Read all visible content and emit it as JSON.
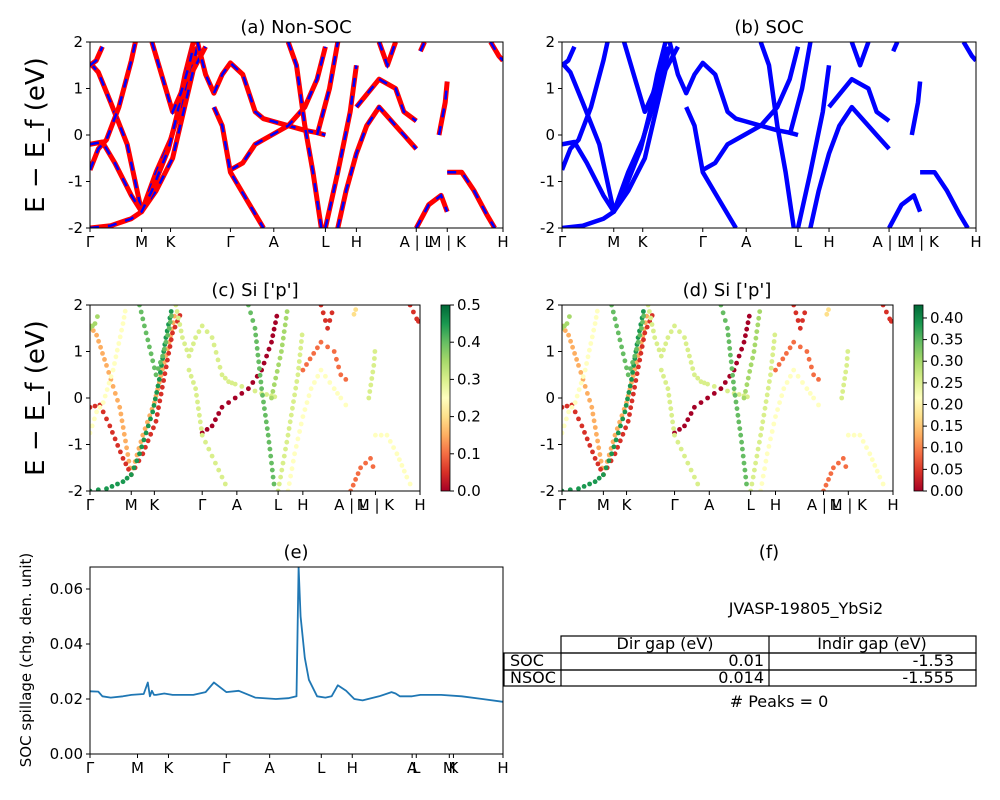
{
  "panels": {
    "a_title": "(a) Non-SOC",
    "b_title": "(b) SOC",
    "c_title": "(c)  Si ['p']",
    "d_title": "(d) Si ['p']",
    "e_title": "(e)",
    "f_title": "(f)",
    "band_ylabel": "E − E_f (eV)",
    "spill_ylabel": "SOC spillage (chg. den. unit)"
  },
  "kpath_labels": [
    "Γ",
    "M",
    "K",
    "Γ",
    "A",
    "L",
    "H",
    "A | L",
    "M | K",
    "H"
  ],
  "kpath_positions": [
    0,
    0.125,
    0.195,
    0.34,
    0.445,
    0.57,
    0.645,
    0.79,
    0.865,
    1.0
  ],
  "kpath_labels_cd": [
    "Γ",
    "M",
    "K",
    "Γ",
    "A",
    "L",
    "H",
    "A | L",
    "M | K",
    "H"
  ],
  "kpath_labels_e": [
    "Γ",
    "M",
    "K",
    "Γ",
    "A",
    "L",
    "H",
    "A",
    "L",
    "M",
    "K",
    "H"
  ],
  "kpath_positions_e": [
    0,
    0.115,
    0.19,
    0.33,
    0.435,
    0.56,
    0.635,
    0.78,
    0.79,
    0.87,
    0.88,
    1.0
  ],
  "colors": {
    "nonsoc_red": "#ff0000",
    "nonsoc_blue": "#0000ff",
    "soc_blue": "#0000ff",
    "spill_line": "#1f77b4"
  },
  "chart_data": [
    {
      "type": "line",
      "title": "(a) Non-SOC",
      "ylabel": "E − E_f (eV)",
      "ylim": [
        -2,
        2
      ],
      "xticklabels": [
        "Γ",
        "M",
        "K",
        "Γ",
        "A",
        "L",
        "H",
        "A | L",
        "M | K",
        "H"
      ],
      "yticks": [
        -2,
        -1,
        0,
        1,
        2
      ],
      "style": "red solid with blue dashes overlay"
    },
    {
      "type": "line",
      "title": "(b) SOC",
      "ylim": [
        -2,
        2
      ],
      "xticklabels": [
        "Γ",
        "M",
        "K",
        "Γ",
        "A",
        "L",
        "H",
        "A | L",
        "M | K",
        "H"
      ],
      "yticks": [
        -2,
        -1,
        0,
        1,
        2
      ],
      "style": "blue solid"
    },
    {
      "type": "scatter",
      "title": "(c)  Si ['p']",
      "ylabel": "E − E_f (eV)",
      "ylim": [
        -2,
        2
      ],
      "colorbar": {
        "min": 0.0,
        "max": 0.5,
        "ticks": [
          "0.0",
          "0.1",
          "0.2",
          "0.3",
          "0.4",
          "0.5"
        ],
        "cmap": "RdYlGn"
      }
    },
    {
      "type": "scatter",
      "title": "(d) Si ['p']",
      "ylim": [
        -2,
        2
      ],
      "colorbar": {
        "min": 0.0,
        "max": 0.43,
        "ticks": [
          "0.00",
          "0.05",
          "0.10",
          "0.15",
          "0.20",
          "0.25",
          "0.30",
          "0.35",
          "0.40"
        ],
        "cmap": "RdYlGn"
      }
    },
    {
      "type": "line",
      "title": "(e)",
      "ylabel": "SOC spillage (chg. den. unit)",
      "ylim": [
        0,
        0.068
      ],
      "yticks": [
        "0.00",
        "0.02",
        "0.04",
        "0.06"
      ],
      "x": [
        0,
        0.02,
        0.03,
        0.05,
        0.08,
        0.1,
        0.13,
        0.14,
        0.145,
        0.15,
        0.155,
        0.16,
        0.18,
        0.2,
        0.25,
        0.28,
        0.3,
        0.33,
        0.36,
        0.4,
        0.45,
        0.48,
        0.5,
        0.505,
        0.51,
        0.52,
        0.53,
        0.55,
        0.57,
        0.585,
        0.6,
        0.62,
        0.64,
        0.66,
        0.7,
        0.73,
        0.74,
        0.75,
        0.78,
        0.8,
        0.85,
        0.9,
        0.95,
        1.0
      ],
      "y": [
        0.0228,
        0.0227,
        0.021,
        0.0205,
        0.021,
        0.0215,
        0.0218,
        0.026,
        0.021,
        0.023,
        0.0215,
        0.0215,
        0.022,
        0.0215,
        0.0215,
        0.0225,
        0.026,
        0.0225,
        0.023,
        0.0205,
        0.02,
        0.0203,
        0.021,
        0.068,
        0.05,
        0.035,
        0.027,
        0.021,
        0.0205,
        0.021,
        0.025,
        0.023,
        0.02,
        0.0195,
        0.021,
        0.0225,
        0.022,
        0.021,
        0.021,
        0.0215,
        0.0215,
        0.021,
        0.02,
        0.019
      ]
    },
    {
      "type": "table",
      "title": "(f)",
      "subtitle": "JVASP-19805_YbSi2",
      "columns": [
        "Dir gap (eV)",
        "Indir gap (eV)"
      ],
      "rows": [
        {
          "label": "SOC",
          "dir": "0.01",
          "indir": "-1.53"
        },
        {
          "label": "NSOC",
          "dir": "0.014",
          "indir": "-1.555"
        }
      ],
      "footer": "# Peaks = 0"
    }
  ]
}
